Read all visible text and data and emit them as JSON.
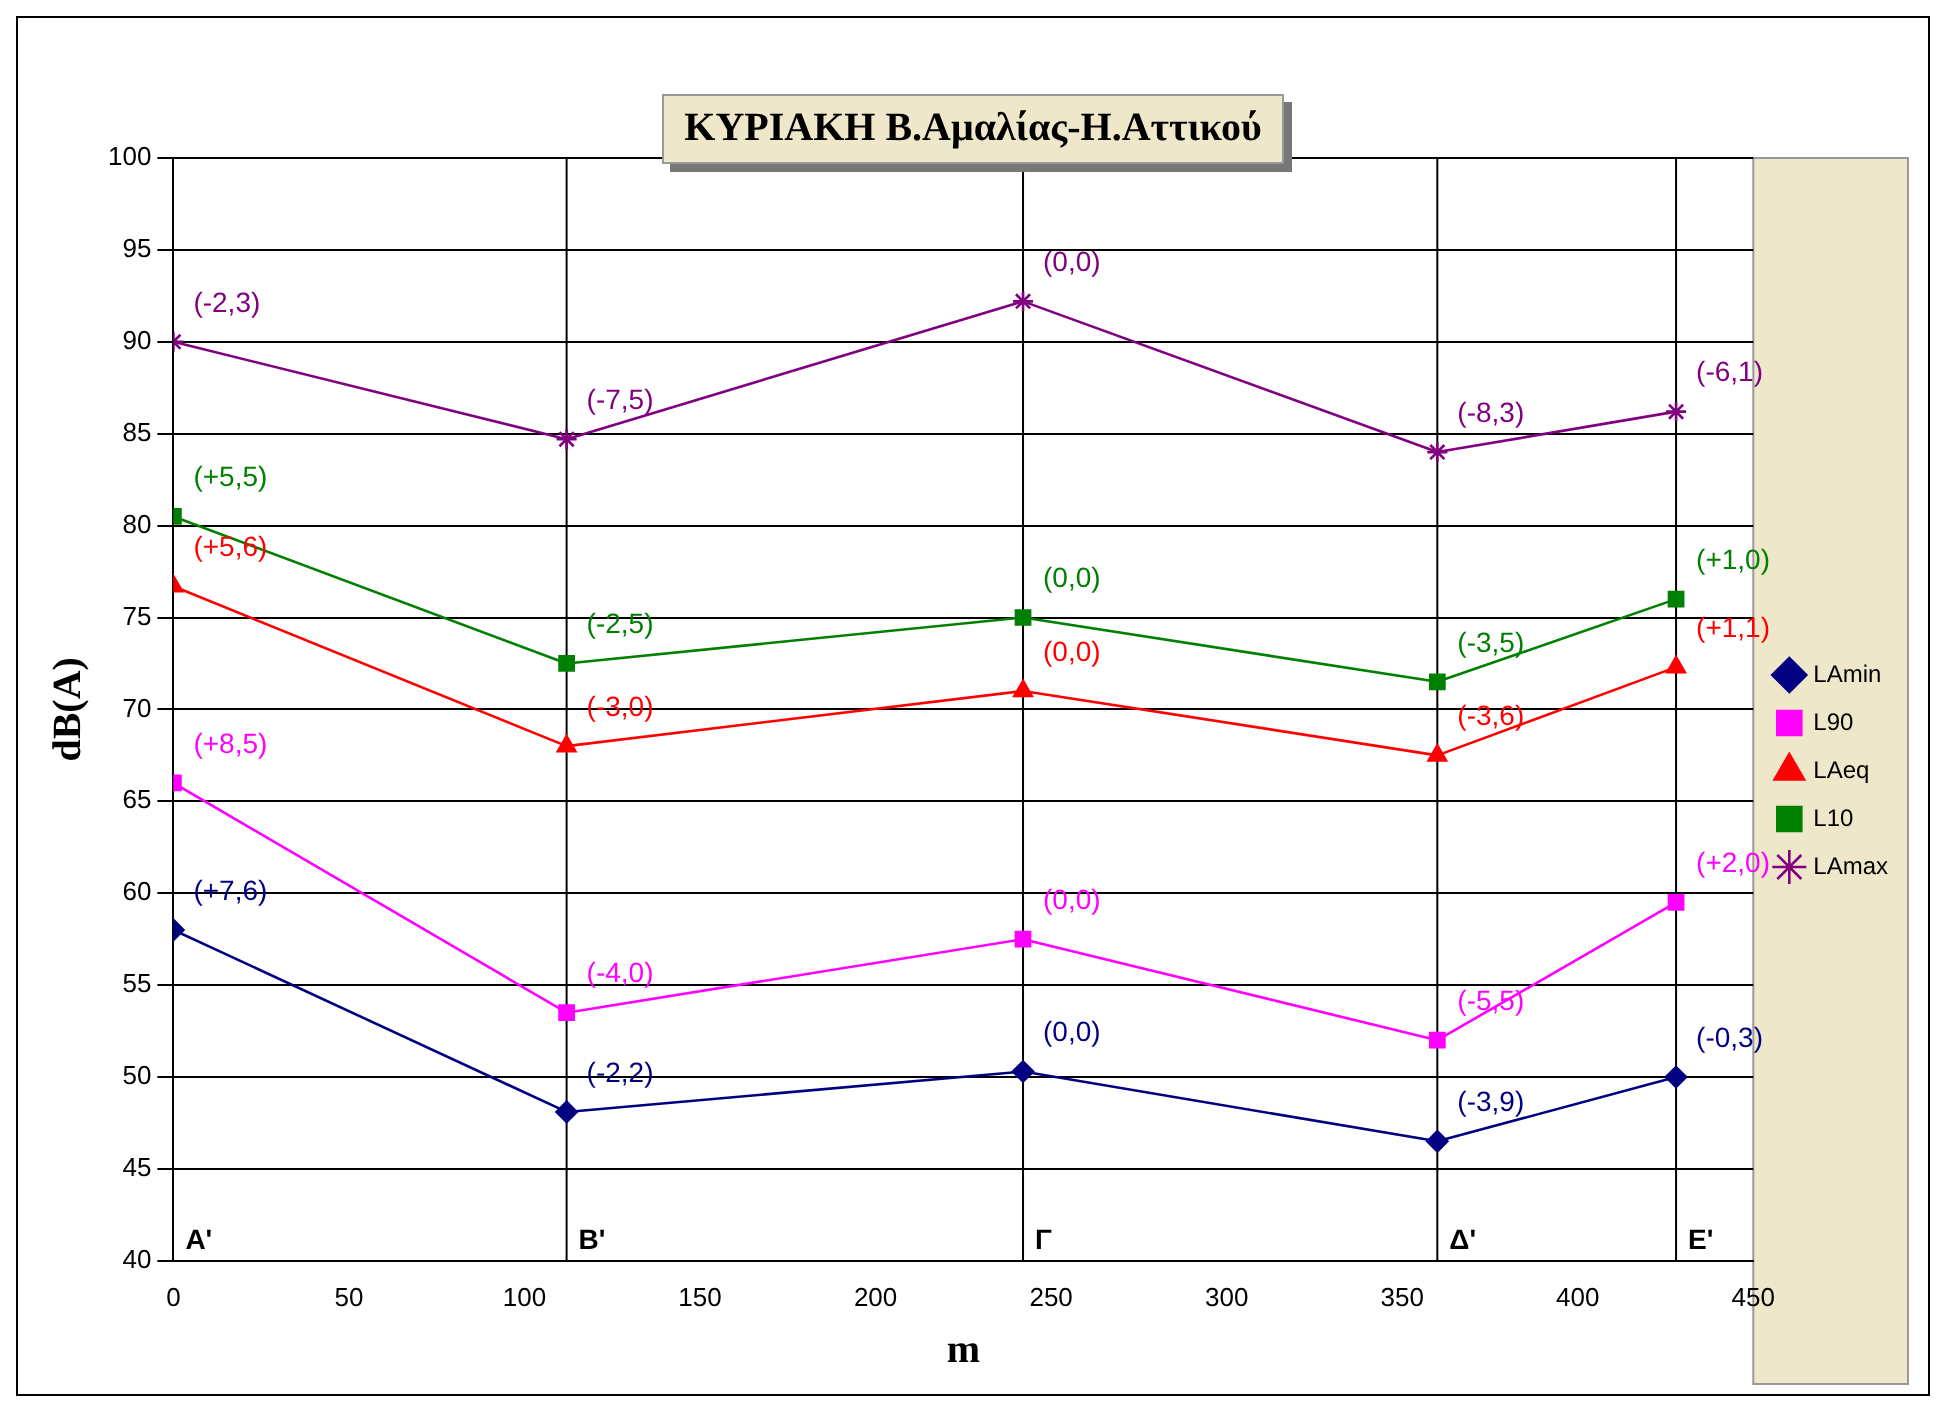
{
  "chart_data": {
    "type": "line",
    "title": "ΚΥΡΙΑΚΗ Β.Αμαλίας-Η.Αττικού",
    "xlabel": "m",
    "ylabel": "dB(A)",
    "x": [
      0,
      112,
      242,
      360,
      428
    ],
    "xlim": [
      0,
      450
    ],
    "xticks": [
      0,
      50,
      100,
      150,
      200,
      250,
      300,
      350,
      400,
      450
    ],
    "ylim": [
      40,
      100
    ],
    "yticks": [
      40,
      45,
      50,
      55,
      60,
      65,
      70,
      75,
      80,
      85,
      90,
      95,
      100
    ],
    "grid": "y",
    "legend": "right",
    "line_style": "solid",
    "series": [
      {
        "name": "LAmin",
        "color": "#000080",
        "marker": "diamond",
        "values": [
          58,
          48.1,
          50.3,
          46.5,
          50
        ]
      },
      {
        "name": "L90",
        "color": "#ff00ff",
        "marker": "square",
        "values": [
          66,
          53.5,
          57.5,
          52,
          59.5
        ]
      },
      {
        "name": "LAeq",
        "color": "#ff0000",
        "marker": "triangle",
        "values": [
          76.7,
          68,
          71,
          67.5,
          72.3
        ]
      },
      {
        "name": "L10",
        "color": "#008000",
        "marker": "square",
        "values": [
          80.5,
          72.5,
          75,
          71.5,
          76
        ]
      },
      {
        "name": "LAmax",
        "color": "#800080",
        "marker": "cross",
        "values": [
          90,
          84.7,
          92.2,
          84,
          86.2
        ]
      }
    ],
    "annotations": [
      {
        "text": "(+7,6)",
        "x": 0,
        "y": 58
      },
      {
        "text": "(-2,2)",
        "x": 112,
        "y": 48.1
      },
      {
        "text": "(0,0)",
        "x": 242,
        "y": 50.3
      },
      {
        "text": "(-3,9)",
        "x": 360,
        "y": 46.5
      },
      {
        "text": "(-0,3)",
        "x": 428,
        "y": 50
      },
      {
        "text": "(+8,5)",
        "x": 0,
        "y": 66
      },
      {
        "text": "(-4,0)",
        "x": 112,
        "y": 53.5
      },
      {
        "text": "(0,0)",
        "x": 242,
        "y": 57.5
      },
      {
        "text": "(-5,5)",
        "x": 360,
        "y": 52
      },
      {
        "text": "(+2,0)",
        "x": 428,
        "y": 59.5
      },
      {
        "text": "(+5,6)",
        "x": 0,
        "y": 76.7
      },
      {
        "text": "(-3,0)",
        "x": 112,
        "y": 68
      },
      {
        "text": "(0,0)",
        "x": 242,
        "y": 71
      },
      {
        "text": "(-3,6)",
        "x": 360,
        "y": 67.5
      },
      {
        "text": "(+1,1)",
        "x": 428,
        "y": 72.3
      },
      {
        "text": "(+5,5)",
        "x": 0,
        "y": 80.5
      },
      {
        "text": "(-2,5)",
        "x": 112,
        "y": 72.5
      },
      {
        "text": "(0,0)",
        "x": 242,
        "y": 75
      },
      {
        "text": "(-3,5)",
        "x": 360,
        "y": 71.5
      },
      {
        "text": "(+1,0)",
        "x": 428,
        "y": 76
      },
      {
        "text": "(-2,3)",
        "x": 0,
        "y": 90
      },
      {
        "text": "(-7,5)",
        "x": 112,
        "y": 84.7
      },
      {
        "text": "(0,0)",
        "x": 242,
        "y": 92.2
      },
      {
        "text": "(-8,3)",
        "x": 360,
        "y": 84
      },
      {
        "text": "(-6,1)",
        "x": 428,
        "y": 86.2
      },
      "Α'"
    ],
    "ref_lines": [
      {
        "axis": "x",
        "value": 112,
        "label": "Β'"
      },
      {
        "axis": "x",
        "value": 242,
        "label": "Γ"
      },
      {
        "axis": "x",
        "value": 360,
        "label": "Δ'"
      },
      {
        "axis": "x",
        "value": 428,
        "label": "Ε'"
      }
    ]
  }
}
